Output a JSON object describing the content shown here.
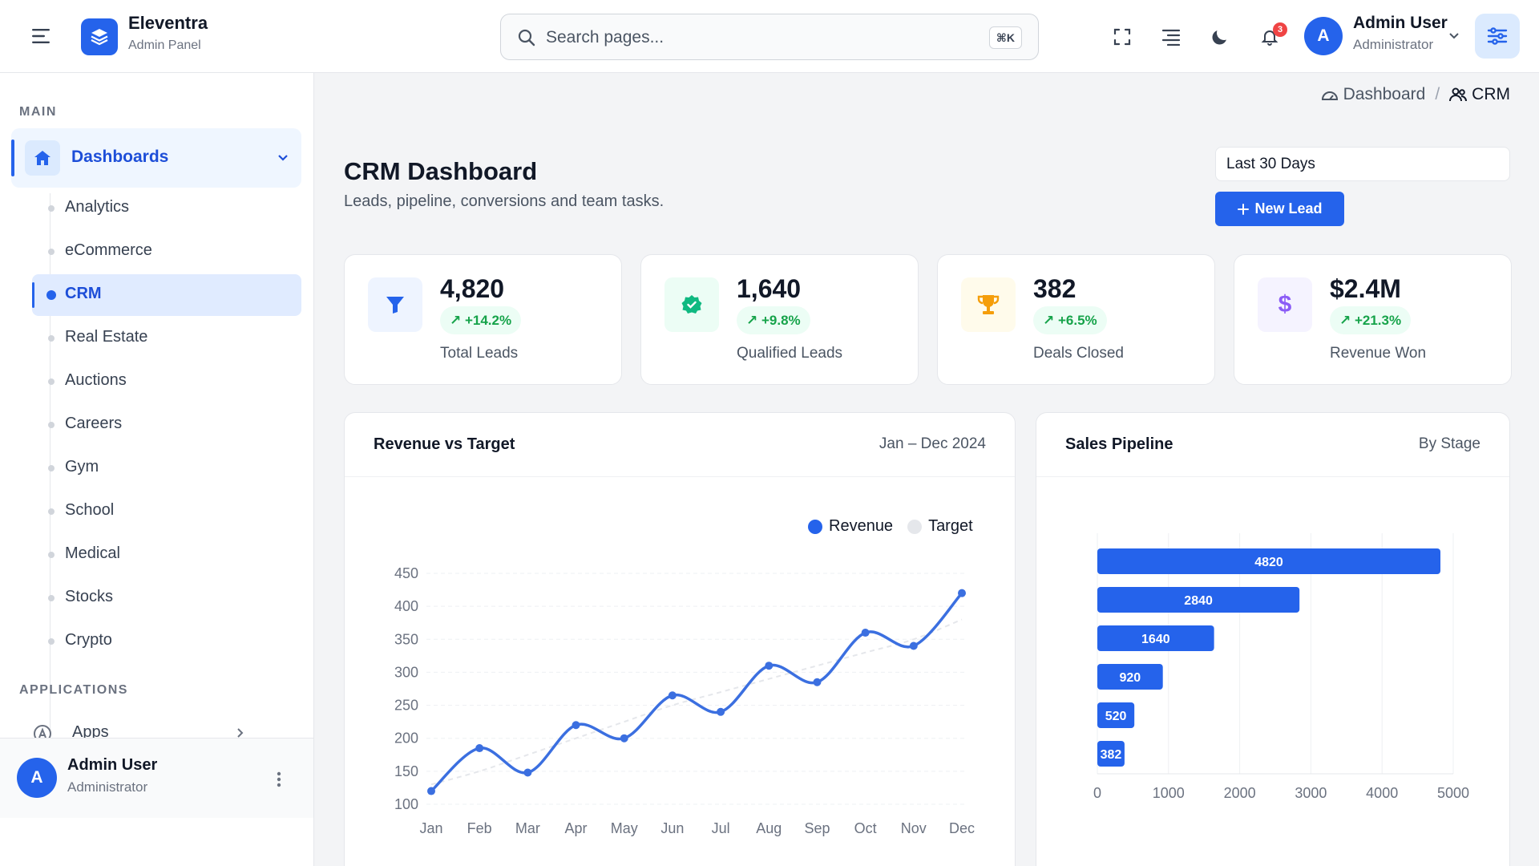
{
  "brand": {
    "name": "Eleventra",
    "subtitle": "Admin Panel"
  },
  "search": {
    "placeholder": "Search pages...",
    "shortcut": "⌘K"
  },
  "header": {
    "notifications_count": "3",
    "user_initial": "A",
    "user_name": "Admin User",
    "user_role": "Administrator"
  },
  "sidebar": {
    "main_label": "MAIN",
    "dashboards_label": "Dashboards",
    "items": [
      {
        "label": "Analytics",
        "active": false
      },
      {
        "label": "eCommerce",
        "active": false
      },
      {
        "label": "CRM",
        "active": true
      },
      {
        "label": "Real Estate",
        "active": false
      },
      {
        "label": "Auctions",
        "active": false
      },
      {
        "label": "Careers",
        "active": false
      },
      {
        "label": "Gym",
        "active": false
      },
      {
        "label": "School",
        "active": false
      },
      {
        "label": "Medical",
        "active": false
      },
      {
        "label": "Stocks",
        "active": false
      },
      {
        "label": "Crypto",
        "active": false
      }
    ],
    "applications_label": "APPLICATIONS",
    "apps_label": "Apps",
    "footer": {
      "initial": "A",
      "name": "Admin User",
      "role": "Administrator"
    }
  },
  "breadcrumb": {
    "parent": "Dashboard",
    "current": "CRM"
  },
  "page": {
    "title": "CRM Dashboard",
    "subtitle": "Leads, pipeline, conversions and team tasks.",
    "range": "Last 30 Days",
    "new_lead": "New Lead"
  },
  "kpis": [
    {
      "value": "4,820",
      "change": "+14.2%",
      "label": "Total Leads",
      "icon": "funnel-icon",
      "color": "#2563eb",
      "bg": "#eef4ff"
    },
    {
      "value": "1,640",
      "change": "+9.8%",
      "label": "Qualified Leads",
      "icon": "verified-badge-icon",
      "color": "#10b981",
      "bg": "#ecfdf5"
    },
    {
      "value": "382",
      "change": "+6.5%",
      "label": "Deals Closed",
      "icon": "trophy-icon",
      "color": "#f59e0b",
      "bg": "#fffbeb"
    },
    {
      "value": "$2.4M",
      "change": "+21.3%",
      "label": "Revenue Won",
      "icon": "dollar-icon",
      "color": "#8b5cf6",
      "bg": "#f5f3ff"
    }
  ],
  "revenue_card": {
    "title": "Revenue vs Target",
    "period": "Jan – Dec 2024"
  },
  "pipeline_card": {
    "title": "Sales Pipeline",
    "grouping": "By Stage"
  },
  "chart_data": [
    {
      "type": "line",
      "title": "Revenue vs Target",
      "categories": [
        "Jan",
        "Feb",
        "Mar",
        "Apr",
        "May",
        "Jun",
        "Jul",
        "Aug",
        "Sep",
        "Oct",
        "Nov",
        "Dec"
      ],
      "series": [
        {
          "name": "Revenue",
          "color": "#2563eb",
          "values": [
            120,
            185,
            148,
            220,
            200,
            265,
            240,
            310,
            285,
            360,
            340,
            420
          ]
        },
        {
          "name": "Target",
          "color": "#e5e7eb",
          "values": [
            130,
            150,
            175,
            200,
            225,
            250,
            270,
            290,
            310,
            330,
            350,
            380
          ]
        }
      ],
      "ylim": [
        100,
        450
      ],
      "yticks": [
        100,
        150,
        200,
        250,
        300,
        350,
        400,
        450
      ],
      "legend": "top-right",
      "grid": true
    },
    {
      "type": "bar",
      "orientation": "horizontal",
      "title": "Sales Pipeline",
      "values": [
        4820,
        2840,
        1640,
        920,
        520,
        382
      ],
      "xlim": [
        0,
        5000
      ],
      "xticks": [
        0,
        1000,
        2000,
        3000,
        4000,
        5000
      ],
      "color": "#2563eb",
      "grid": true
    }
  ]
}
